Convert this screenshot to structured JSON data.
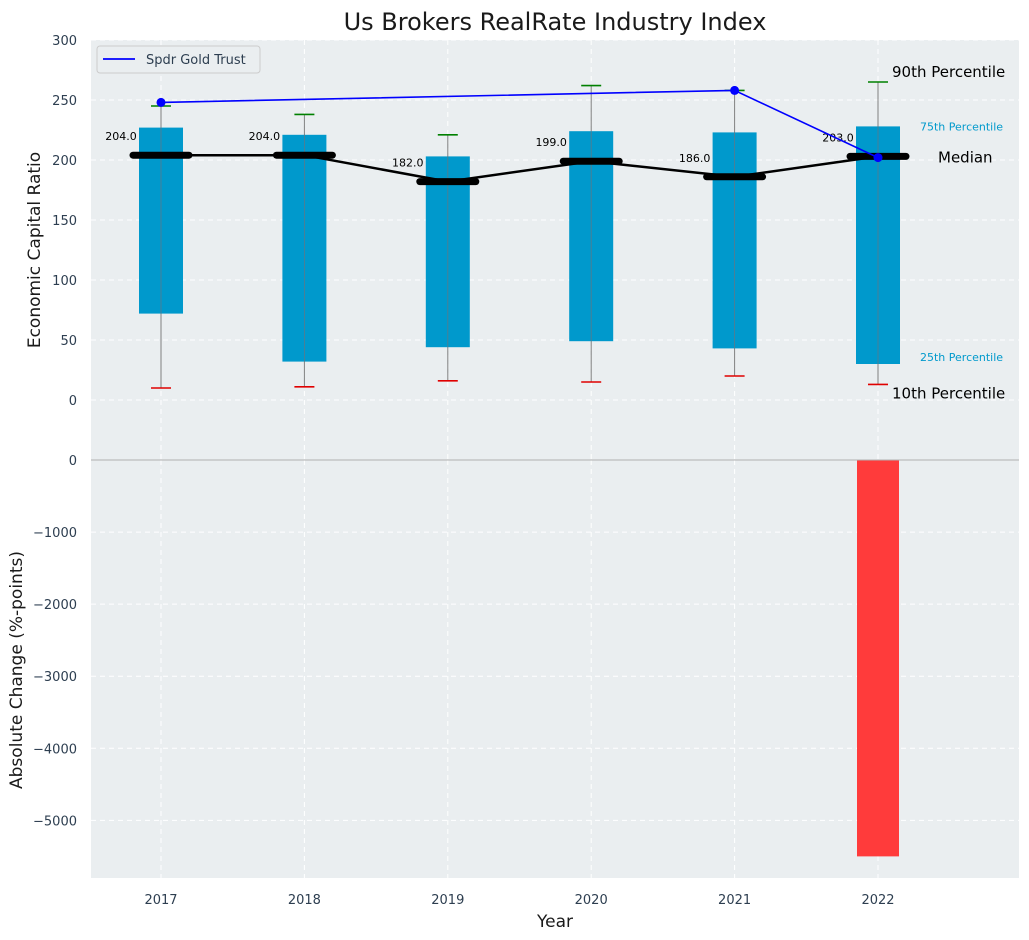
{
  "chart_data": {
    "type": "bar",
    "title": "Us Brokers RealRate Industry Index",
    "xlabel": "Year",
    "categories": [
      "2017",
      "2018",
      "2019",
      "2020",
      "2021",
      "2022"
    ],
    "top_panel": {
      "ylabel": "Economic Capital Ratio",
      "ylim": [
        0,
        300
      ],
      "yticks": [
        0,
        50,
        100,
        150,
        200,
        250,
        300
      ],
      "p10": [
        10,
        11,
        16,
        15,
        20,
        13
      ],
      "p25": [
        72,
        32,
        44,
        49,
        43,
        30
      ],
      "median": [
        204,
        204,
        182,
        199,
        186,
        203
      ],
      "median_labels": [
        "204.0",
        "204.0",
        "182.0",
        "199.0",
        "186.0",
        "203.0"
      ],
      "p75": [
        227,
        221,
        203,
        224,
        223,
        228
      ],
      "p90": [
        245,
        238,
        221,
        262,
        258,
        265
      ],
      "series": [
        {
          "name": "Spdr Gold Trust",
          "values": [
            248,
            null,
            null,
            null,
            258,
            202
          ],
          "color": "#0000ff"
        }
      ],
      "annotations": {
        "p90": "90th Percentile",
        "p75": "75th Percentile",
        "median": "Median",
        "p25": "25th Percentile",
        "p10": "10th Percentile"
      },
      "legend_position": "top-left"
    },
    "bottom_panel": {
      "ylabel": "Absolute Change (%-points)",
      "ylim": [
        -5800,
        0
      ],
      "yticks": [
        0,
        -1000,
        -2000,
        -3000,
        -4000,
        -5000
      ],
      "ytick_labels": [
        "0",
        "−1000",
        "−2000",
        "−3000",
        "−4000",
        "−5000"
      ],
      "values": [
        null,
        null,
        null,
        null,
        null,
        -5500
      ]
    },
    "grid": true,
    "colors": {
      "iqr_bar": "#0099cc",
      "median_line": "#000000",
      "p90_cap": "#008000",
      "p10_cap": "#e00000",
      "change_bar": "#ff3b3b",
      "whisker": "#808080",
      "background": "#eaeef0"
    }
  }
}
